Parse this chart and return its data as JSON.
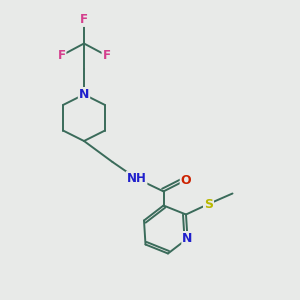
{
  "bg_color": "#e8eae8",
  "bond_color": "#3a6b5a",
  "bond_width": 1.4,
  "atom_colors": {
    "F": "#d43f8d",
    "N": "#2020cc",
    "O": "#cc2200",
    "S": "#b8b800",
    "C": "#3a6b5a"
  },
  "figsize": [
    3.0,
    3.0
  ],
  "dpi": 100,
  "xlim": [
    0,
    10
  ],
  "ylim": [
    0,
    10
  ]
}
